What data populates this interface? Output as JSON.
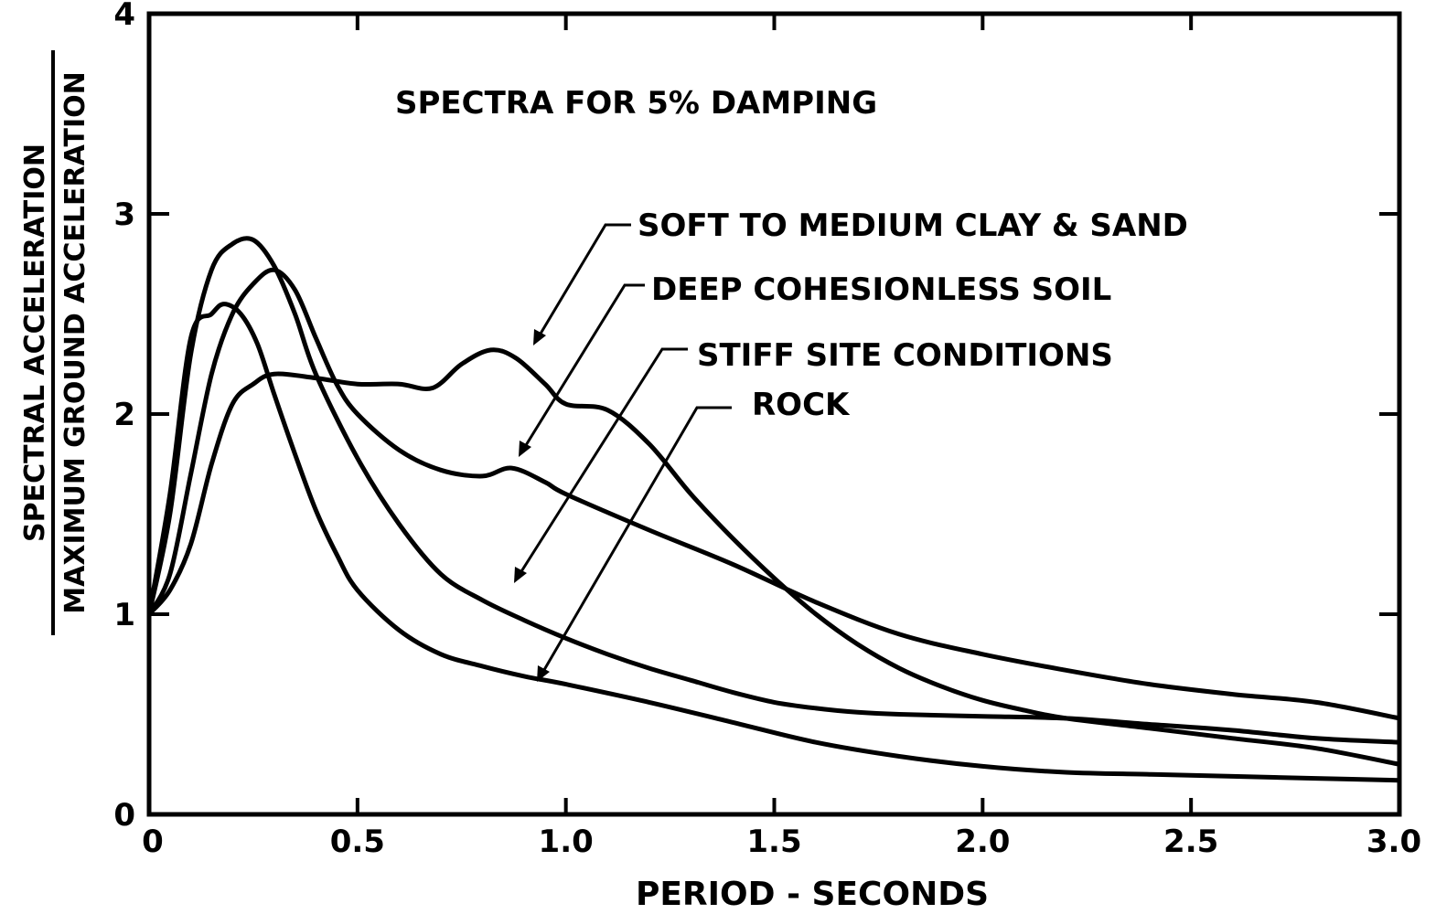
{
  "chart_data": {
    "type": "line",
    "title": "SPECTRA FOR 5% DAMPING",
    "xlabel": "PERIOD - SECONDS",
    "ylabel_numerator": "SPECTRAL ACCELERATION",
    "ylabel_denominator": "MAXIMUM GROUND ACCELERATION",
    "xlim": [
      0,
      3.0
    ],
    "ylim": [
      0,
      4
    ],
    "x_ticks": [
      0,
      0.5,
      1.0,
      1.5,
      2.0,
      2.5,
      3.0
    ],
    "x_tick_labels": [
      "0",
      "0.5",
      "1.0",
      "1.5",
      "2.0",
      "2.5",
      "3.0"
    ],
    "y_ticks": [
      0,
      1,
      2,
      3,
      4
    ],
    "y_tick_labels": [
      "0",
      "1",
      "2",
      "3",
      "4"
    ],
    "grid": false,
    "legend": "annotations with leader arrows",
    "series": [
      {
        "name": "SOFT TO MEDIUM CLAY & SAND",
        "points": [
          [
            0,
            1.0
          ],
          [
            0.05,
            1.12
          ],
          [
            0.1,
            1.35
          ],
          [
            0.15,
            1.75
          ],
          [
            0.2,
            2.05
          ],
          [
            0.25,
            2.15
          ],
          [
            0.3,
            2.2
          ],
          [
            0.4,
            2.18
          ],
          [
            0.5,
            2.15
          ],
          [
            0.6,
            2.15
          ],
          [
            0.68,
            2.13
          ],
          [
            0.75,
            2.25
          ],
          [
            0.82,
            2.32
          ],
          [
            0.88,
            2.28
          ],
          [
            0.95,
            2.15
          ],
          [
            1.0,
            2.05
          ],
          [
            1.1,
            2.02
          ],
          [
            1.2,
            1.85
          ],
          [
            1.3,
            1.6
          ],
          [
            1.4,
            1.38
          ],
          [
            1.5,
            1.18
          ],
          [
            1.6,
            1.0
          ],
          [
            1.7,
            0.85
          ],
          [
            1.8,
            0.73
          ],
          [
            1.9,
            0.64
          ],
          [
            2.0,
            0.57
          ],
          [
            2.1,
            0.52
          ],
          [
            2.2,
            0.48
          ],
          [
            2.4,
            0.43
          ],
          [
            2.6,
            0.38
          ],
          [
            2.8,
            0.33
          ],
          [
            3.0,
            0.25
          ]
        ]
      },
      {
        "name": "DEEP COHESIONLESS SOIL",
        "points": [
          [
            0,
            1.0
          ],
          [
            0.05,
            1.2
          ],
          [
            0.1,
            1.7
          ],
          [
            0.15,
            2.2
          ],
          [
            0.2,
            2.5
          ],
          [
            0.25,
            2.65
          ],
          [
            0.3,
            2.72
          ],
          [
            0.35,
            2.62
          ],
          [
            0.4,
            2.38
          ],
          [
            0.45,
            2.15
          ],
          [
            0.5,
            2.0
          ],
          [
            0.6,
            1.82
          ],
          [
            0.7,
            1.72
          ],
          [
            0.8,
            1.69
          ],
          [
            0.87,
            1.73
          ],
          [
            0.95,
            1.66
          ],
          [
            1.0,
            1.6
          ],
          [
            1.2,
            1.42
          ],
          [
            1.4,
            1.25
          ],
          [
            1.6,
            1.06
          ],
          [
            1.8,
            0.9
          ],
          [
            2.0,
            0.8
          ],
          [
            2.2,
            0.72
          ],
          [
            2.4,
            0.65
          ],
          [
            2.6,
            0.6
          ],
          [
            2.8,
            0.56
          ],
          [
            3.0,
            0.48
          ]
        ]
      },
      {
        "name": "STIFF SITE CONDITIONS",
        "points": [
          [
            0,
            1.0
          ],
          [
            0.05,
            1.5
          ],
          [
            0.1,
            2.3
          ],
          [
            0.15,
            2.72
          ],
          [
            0.2,
            2.85
          ],
          [
            0.25,
            2.87
          ],
          [
            0.3,
            2.74
          ],
          [
            0.35,
            2.5
          ],
          [
            0.4,
            2.2
          ],
          [
            0.5,
            1.78
          ],
          [
            0.6,
            1.45
          ],
          [
            0.7,
            1.2
          ],
          [
            0.8,
            1.07
          ],
          [
            0.9,
            0.97
          ],
          [
            1.0,
            0.88
          ],
          [
            1.1,
            0.8
          ],
          [
            1.2,
            0.73
          ],
          [
            1.3,
            0.67
          ],
          [
            1.4,
            0.61
          ],
          [
            1.5,
            0.56
          ],
          [
            1.6,
            0.53
          ],
          [
            1.7,
            0.51
          ],
          [
            1.8,
            0.5
          ],
          [
            2.0,
            0.49
          ],
          [
            2.2,
            0.48
          ],
          [
            2.4,
            0.45
          ],
          [
            2.6,
            0.42
          ],
          [
            2.8,
            0.38
          ],
          [
            3.0,
            0.36
          ]
        ]
      },
      {
        "name": "ROCK",
        "points": [
          [
            0,
            1.0
          ],
          [
            0.05,
            1.6
          ],
          [
            0.1,
            2.38
          ],
          [
            0.15,
            2.5
          ],
          [
            0.18,
            2.55
          ],
          [
            0.22,
            2.5
          ],
          [
            0.26,
            2.35
          ],
          [
            0.3,
            2.1
          ],
          [
            0.35,
            1.8
          ],
          [
            0.4,
            1.52
          ],
          [
            0.45,
            1.3
          ],
          [
            0.5,
            1.12
          ],
          [
            0.6,
            0.92
          ],
          [
            0.7,
            0.8
          ],
          [
            0.8,
            0.74
          ],
          [
            0.9,
            0.69
          ],
          [
            1.0,
            0.65
          ],
          [
            1.2,
            0.56
          ],
          [
            1.4,
            0.46
          ],
          [
            1.6,
            0.36
          ],
          [
            1.8,
            0.29
          ],
          [
            2.0,
            0.24
          ],
          [
            2.2,
            0.21
          ],
          [
            2.4,
            0.2
          ],
          [
            2.6,
            0.19
          ],
          [
            2.8,
            0.18
          ],
          [
            3.0,
            0.17
          ]
        ]
      }
    ]
  }
}
